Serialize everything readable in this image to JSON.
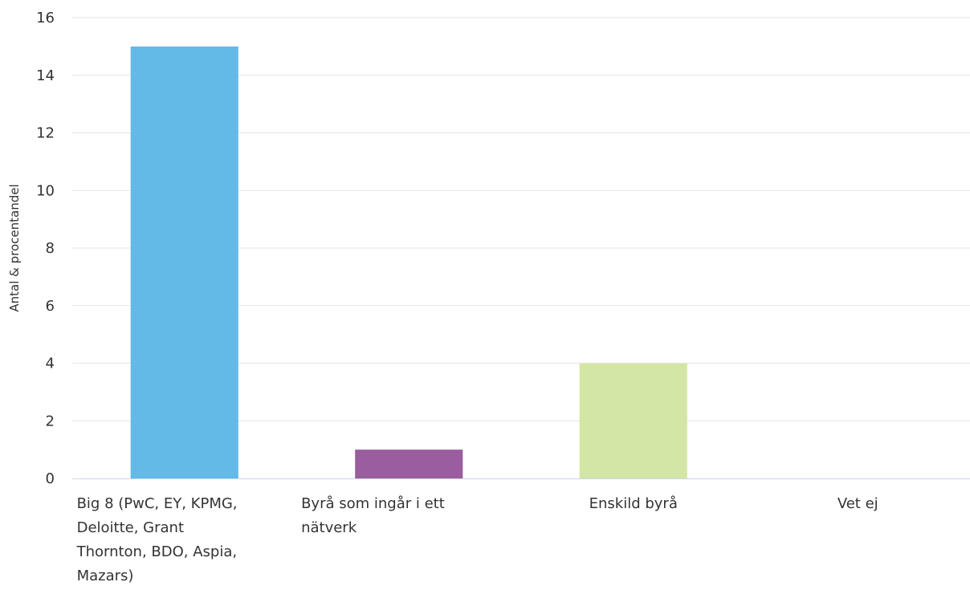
{
  "chart_data": {
    "type": "bar",
    "title": "",
    "xlabel": "",
    "ylabel": "Antal & procentandel",
    "ylim": [
      0,
      16
    ],
    "yticks": [
      0,
      2,
      4,
      6,
      8,
      10,
      12,
      14,
      16
    ],
    "grid": true,
    "legend": "none",
    "categories": [
      "Big 8 (PwC, EY, KPMG, Deloitte, Grant Thornton, BDO, Aspia, Mazars)",
      "Byrå som ingår i ett nätverk",
      "Enskild byrå",
      "Vet ej"
    ],
    "category_label_lines": [
      [
        "Big 8 (PwC, EY, KPMG,",
        "Deloitte, Grant",
        "Thornton, BDO, Aspia,",
        "Mazars)"
      ],
      [
        "Byrå som ingår i ett",
        "nätverk"
      ],
      [
        "Enskild byrå"
      ],
      [
        "Vet ej"
      ]
    ],
    "values": [
      15,
      1,
      4,
      0
    ],
    "colors": [
      "#64BAE6",
      "#9A5E9E",
      "#D4E6A6",
      "#9A9A9A"
    ]
  }
}
